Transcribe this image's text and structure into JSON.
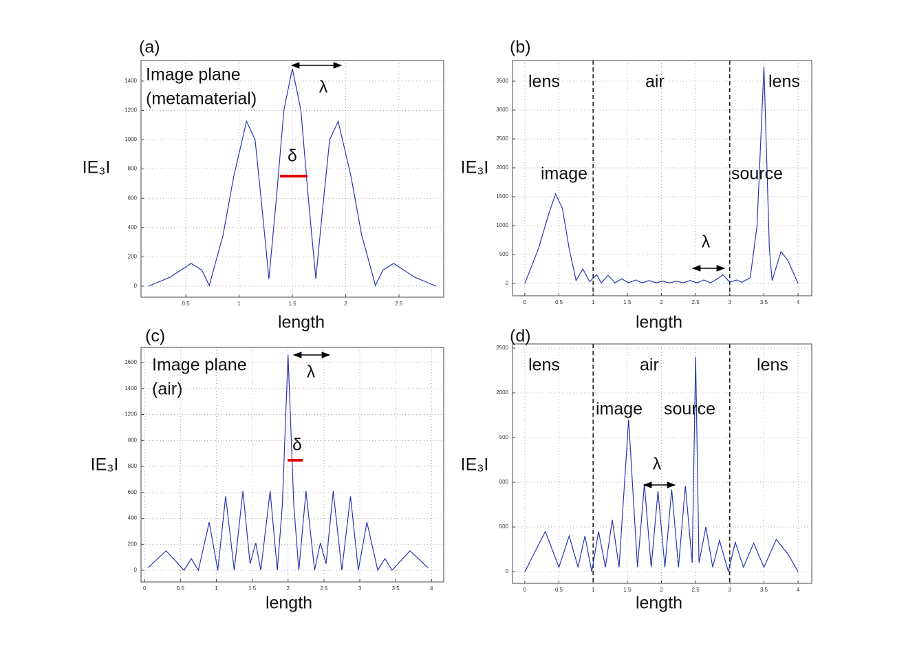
{
  "chart_data": [
    {
      "type": "line",
      "title": "(a)",
      "xlabel": "length",
      "ylabel": "IE₃I",
      "annotations": [
        "Image plane",
        "(metamaterial)",
        "λ",
        "δ"
      ],
      "x": [
        0.15,
        0.35,
        0.55,
        0.65,
        0.72,
        0.85,
        0.95,
        1.07,
        1.15,
        1.22,
        1.28,
        1.35,
        1.42,
        1.5,
        1.58,
        1.65,
        1.72,
        1.78,
        1.85,
        1.93,
        2.05,
        2.15,
        2.28,
        2.35,
        2.45,
        2.65,
        2.85
      ],
      "values": [
        0,
        60,
        155,
        110,
        5,
        350,
        750,
        1125,
        1000,
        500,
        50,
        600,
        1200,
        1485,
        1200,
        600,
        50,
        500,
        1000,
        1125,
        750,
        350,
        5,
        110,
        155,
        60,
        0
      ],
      "color": "#2a35b0",
      "xlim": [
        0.08,
        2.92
      ],
      "ylim": [
        -75,
        1540
      ],
      "xticks": [
        0.5,
        1,
        1.5,
        2,
        2.5
      ],
      "yticks": [
        0,
        200,
        400,
        600,
        800,
        1000,
        1200,
        1400
      ],
      "grid": true
    },
    {
      "type": "line",
      "title": "(b)",
      "xlabel": "length",
      "ylabel": "IE₃I",
      "annotations": [
        "lens",
        "air",
        "lens",
        "image",
        "source",
        "λ"
      ],
      "x": [
        0,
        0.2,
        0.35,
        0.45,
        0.55,
        0.65,
        0.75,
        0.85,
        0.95,
        1.05,
        1.12,
        1.22,
        1.32,
        1.42,
        1.52,
        1.62,
        1.72,
        1.82,
        1.92,
        2.02,
        2.12,
        2.22,
        2.32,
        2.42,
        2.52,
        2.62,
        2.72,
        2.82,
        2.9,
        3.0,
        3.1,
        3.18,
        3.3,
        3.4,
        3.5,
        3.58,
        3.62,
        3.75,
        3.85,
        4.0
      ],
      "values": [
        0,
        600,
        1200,
        1550,
        1300,
        600,
        50,
        250,
        30,
        150,
        10,
        140,
        10,
        80,
        10,
        60,
        10,
        50,
        10,
        40,
        10,
        40,
        10,
        50,
        10,
        60,
        10,
        80,
        150,
        20,
        60,
        20,
        100,
        1000,
        3750,
        600,
        50,
        550,
        400,
        0
      ],
      "color": "#2a35b0",
      "xlim": [
        -0.18,
        4.2
      ],
      "ylim": [
        -214,
        3857
      ],
      "xticks": [
        0,
        0.5,
        1,
        1.5,
        2,
        2.5,
        3,
        3.5,
        4
      ],
      "yticks": [
        0,
        500,
        1000,
        1500,
        2000,
        2500,
        3000,
        3500
      ],
      "grid": true,
      "vlines": [
        1,
        3
      ]
    },
    {
      "type": "line",
      "title": "(c)",
      "xlabel": "length",
      "ylabel": "IE₃I",
      "annotations": [
        "Image plane",
        "(air)",
        "λ",
        "δ"
      ],
      "x": [
        0.05,
        0.3,
        0.55,
        0.65,
        0.75,
        0.9,
        1.02,
        1.13,
        1.25,
        1.37,
        1.47,
        1.55,
        1.62,
        1.75,
        1.85,
        1.92,
        2.0,
        2.08,
        2.15,
        2.25,
        2.37,
        2.45,
        2.53,
        2.63,
        2.75,
        2.87,
        2.98,
        3.1,
        3.25,
        3.35,
        3.45,
        3.7,
        3.95
      ],
      "values": [
        20,
        150,
        0,
        90,
        0,
        370,
        0,
        570,
        0,
        610,
        50,
        210,
        0,
        610,
        0,
        500,
        1660,
        500,
        0,
        610,
        0,
        210,
        50,
        610,
        0,
        570,
        0,
        370,
        0,
        90,
        0,
        150,
        20
      ],
      "color": "#2a35b0",
      "xlim": [
        -0.05,
        4.17
      ],
      "ylim": [
        -90,
        1717
      ],
      "xticks": [
        0,
        0.5,
        1,
        1.5,
        2,
        2.5,
        3,
        3.5,
        4
      ],
      "yticks": [
        0,
        200,
        400,
        600,
        800,
        {
          "value": 1000,
          "label": "000"
        },
        1200,
        1400,
        1600
      ],
      "grid": true
    },
    {
      "type": "line",
      "title": "(d)",
      "xlabel": "length",
      "ylabel": "IE₃I",
      "annotations": [
        "lens",
        "air",
        "lens",
        "image",
        "source",
        "λ"
      ],
      "x": [
        0,
        0.3,
        0.5,
        0.65,
        0.78,
        0.88,
        0.98,
        1.08,
        1.18,
        1.28,
        1.38,
        1.52,
        1.65,
        1.75,
        1.85,
        1.95,
        2.05,
        2.15,
        2.25,
        2.35,
        2.45,
        2.5,
        2.55,
        2.65,
        2.75,
        2.85,
        2.98,
        3.08,
        3.2,
        3.35,
        3.5,
        3.68,
        3.85,
        4.0
      ],
      "values": [
        0,
        450,
        50,
        400,
        50,
        400,
        0,
        450,
        50,
        580,
        50,
        1700,
        50,
        980,
        50,
        900,
        50,
        920,
        50,
        960,
        100,
        2400,
        100,
        500,
        50,
        350,
        0,
        330,
        50,
        320,
        50,
        360,
        200,
        0
      ],
      "color": "#2a35b0",
      "xlim": [
        -0.18,
        4.2
      ],
      "ylim": [
        -130,
        2546
      ],
      "xticks": [
        0,
        0.5,
        1,
        1.5,
        2,
        2.5,
        3,
        3.5,
        4
      ],
      "yticks": [
        0,
        500,
        {
          "value": 1000,
          "label": "000"
        },
        {
          "value": 1500,
          "label": "500"
        },
        2000,
        2500
      ],
      "grid": true,
      "vlines": [
        1,
        3
      ]
    }
  ]
}
